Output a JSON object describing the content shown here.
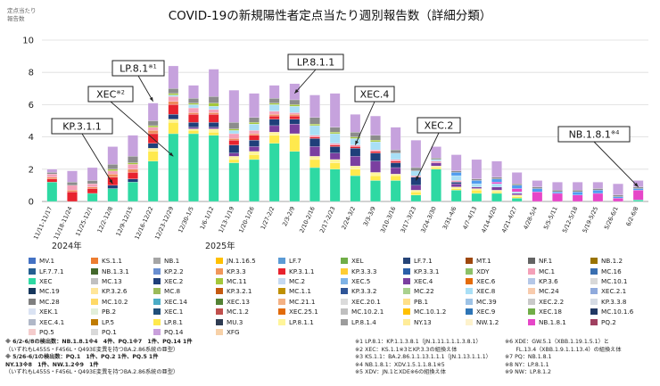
{
  "chart_data": {
    "type": "bar",
    "title": "COVID-19の新規陽性者定点当たり週別報告数（詳細分類）",
    "ylabel": "定点当たり\n報告数",
    "ylim": [
      0,
      10
    ],
    "yticks": [
      0,
      2,
      4,
      6,
      8,
      10
    ],
    "grid": true,
    "year_labels": [
      "2024年",
      "2025年"
    ],
    "categories": [
      "11/11-11/17",
      "11/18-11/24",
      "11/25-12/1",
      "12/2-12/8",
      "12/9-12/15",
      "12/16-12/22",
      "12/23-12/29",
      "12/30-1/5",
      "1/6-1/12",
      "1/13-1/19",
      "1/20-1/26",
      "1/27-2/2",
      "2/3-2/9",
      "2/10-2/16",
      "2/17-2/23",
      "2/24-3/2",
      "3/3-3/9",
      "3/10-3/16",
      "3/17-3/23",
      "3/24-3/30",
      "3/31-4/6",
      "4/7-4/13",
      "4/14-4/20",
      "4/21-4/27",
      "4/28-5/4",
      "5/5-5/11",
      "5/12-5/18",
      "5/19-5/25",
      "5/26-6/1",
      "6/2-6/8"
    ],
    "x_tick_labels": [
      "11/11-11/17",
      "11/18-11/24",
      "11/25-12/1",
      "12/2-12/8",
      "12/9-12/15",
      "12/16-12/22",
      "12/23-12/29",
      "12/30-1/5",
      "1/6-1/12",
      "1/13-1/19",
      "1/20-1/26",
      "1/27-2/2",
      "2/3-2/9",
      "2/10-2/16",
      "2/17-2/23",
      "2/24-3/2",
      "3/3-3/9",
      "3/10-3/16",
      "3/17-3/23",
      "3/24-3/30",
      "3/31-4/6",
      "4/7-4/13",
      "4/14-4/20",
      "4/21-4/27",
      "4/28-5/4",
      "5/5-5/11",
      "5/12-5/18",
      "5/19-5/25",
      "5/26-6/1",
      "6/2-6/8"
    ],
    "totals": [
      2.0,
      1.9,
      2.1,
      3.4,
      4.1,
      6.1,
      8.4,
      7.1,
      7.9,
      6.4,
      6.4,
      7.2,
      7.3,
      6.6,
      6.7,
      5.4,
      5.2,
      4.6,
      3.8,
      3.3,
      2.8,
      2.5,
      2.4,
      1.7,
      1.3,
      1.2,
      1.2,
      1.2,
      1.1,
      1.3
    ],
    "series": [
      {
        "name": "XEC",
        "color": "#2ed9a3",
        "values": [
          1.2,
          0,
          0.5,
          0.8,
          1.2,
          2.5,
          4.2,
          4.2,
          4.1,
          2.4,
          2.6,
          3.6,
          3.1,
          2.1,
          2.0,
          1.6,
          1.3,
          1.3,
          0.4,
          2.0,
          0.7,
          0.5,
          0.5,
          0.2,
          0,
          0,
          0,
          0,
          0,
          0.1
        ]
      },
      {
        "name": "LP.8.1",
        "color": "#ffe94d",
        "values": [
          0,
          0,
          0,
          0,
          0,
          0.6,
          0.7,
          0.2,
          0.2,
          0.2,
          0.3,
          0.5,
          1.0,
          0.5,
          0.4,
          0.4,
          0.3,
          0.3,
          0.2,
          0.1,
          0.1,
          0.2,
          0.1,
          0.1,
          0,
          0,
          0,
          0,
          0,
          0
        ]
      },
      {
        "name": "LP.8.1.1",
        "color": "#fff59a",
        "values": [
          0,
          0,
          0,
          0,
          0,
          0.2,
          0.2,
          0.1,
          0.2,
          0.2,
          0.2,
          0.2,
          0.1,
          0.2,
          0.2,
          0.2,
          0.2,
          0.1,
          0.1,
          0.1,
          0.1,
          0.1,
          0.1,
          0.1,
          0,
          0,
          0,
          0,
          0,
          0
        ]
      },
      {
        "name": "XEC.4",
        "color": "#7b3fa0",
        "values": [
          0,
          0,
          0,
          0,
          0,
          0,
          0,
          0.1,
          0.1,
          0.2,
          0.3,
          0.4,
          0.6,
          0.6,
          0.4,
          0.6,
          0.7,
          0.4,
          0.3,
          0.2,
          0.2,
          0.1,
          0.2,
          0.1,
          0,
          0,
          0,
          0,
          0,
          0
        ]
      },
      {
        "name": "XEC.2",
        "color": "#1f3f7a",
        "values": [
          0,
          0,
          0,
          0.2,
          0.2,
          0.3,
          0.3,
          0.3,
          0.3,
          0.5,
          0.4,
          0.4,
          0.3,
          0.5,
          0.4,
          0.5,
          0.5,
          0.3,
          0.5,
          0,
          0.1,
          0,
          0,
          0,
          0,
          0,
          0,
          0,
          0,
          0
        ]
      },
      {
        "name": "KP.3.1.1",
        "color": "#e8232e",
        "values": [
          0.2,
          0.6,
          0.3,
          0.5,
          0.4,
          0.6,
          0.6,
          0.5,
          0.5,
          0.3,
          0.3,
          0.2,
          0.2,
          0.1,
          0.1,
          0.1,
          0.1,
          0.1,
          0,
          0,
          0,
          0,
          0,
          0,
          0,
          0,
          0,
          0,
          0,
          0
        ]
      },
      {
        "name": "KP.3.3",
        "color": "#f08a5c",
        "values": [
          0.1,
          0.1,
          0.1,
          0.2,
          0.2,
          0.2,
          0.2,
          0.1,
          0.1,
          0.1,
          0.1,
          0.1,
          0.1,
          0,
          0,
          0,
          0,
          0,
          0,
          0,
          0,
          0,
          0,
          0,
          0,
          0,
          0,
          0,
          0,
          0
        ]
      },
      {
        "name": "MC.1",
        "color": "#f4a0b8",
        "values": [
          0.2,
          0.3,
          0.2,
          0.2,
          0.3,
          0.2,
          0.3,
          0.3,
          0.2,
          0.3,
          0.2,
          0.2,
          0.1,
          0.1,
          0.1,
          0.1,
          0.1,
          0.1,
          0.1,
          0.1,
          0.1,
          0,
          0,
          0,
          0,
          0,
          0,
          0,
          0,
          0
        ]
      },
      {
        "name": "XEC.8",
        "color": "#a9dff6",
        "values": [
          0,
          0,
          0,
          0,
          0,
          0,
          0.1,
          0.2,
          0.2,
          0.2,
          0.4,
          0.4,
          0.4,
          0.6,
          0.6,
          0.4,
          0.5,
          0.4,
          0.3,
          0.1,
          0.3,
          0.2,
          0.2,
          0.1,
          0,
          0,
          0,
          0,
          0,
          0
        ]
      },
      {
        "name": "MC.11",
        "color": "#a4c73a",
        "values": [
          0,
          0,
          0,
          0.1,
          0.1,
          0.1,
          0.1,
          0.1,
          0.2,
          0.1,
          0.1,
          0.1,
          0.1,
          0.1,
          0.1,
          0.1,
          0.1,
          0,
          0,
          0,
          0,
          0,
          0,
          0,
          0,
          0,
          0,
          0,
          0,
          0
        ]
      },
      {
        "name": "NB.1.8.1",
        "color": "#e646c8",
        "values": [
          0,
          0,
          0,
          0,
          0,
          0,
          0,
          0,
          0,
          0,
          0,
          0,
          0,
          0,
          0,
          0,
          0,
          0,
          0,
          0,
          0,
          0,
          0.1,
          0.2,
          0.6,
          0.5,
          0.4,
          0.5,
          0.2,
          0.6
        ]
      },
      {
        "name": "XEC.11",
        "color": "#4f9cf0",
        "values": [
          0,
          0,
          0,
          0,
          0,
          0,
          0,
          0,
          0,
          0,
          0,
          0,
          0,
          0,
          0,
          0,
          0,
          0,
          0,
          0,
          0.2,
          0.2,
          0.2,
          0.2,
          0.2,
          0.1,
          0.2,
          0.2,
          0.1,
          0.1
        ]
      },
      {
        "name": "LF.7",
        "color": "#8c8c8c",
        "values": [
          0.1,
          0.2,
          0.2,
          0.3,
          0.4,
          0.3,
          0.3,
          0.3,
          0.4,
          0.4,
          0.3,
          0.3,
          0.3,
          0.4,
          0.3,
          0.3,
          0.3,
          0.2,
          0.2,
          0.1,
          0.1,
          0.1,
          0.1,
          0.1,
          0.1,
          0.1,
          0.1,
          0.1,
          0.1,
          0.1
        ]
      },
      {
        "name": "その他",
        "color": "#c6a2dd",
        "values": [
          0.2,
          0.7,
          0.8,
          1.1,
          1.3,
          1.1,
          1.4,
          0.8,
          1.7,
          2.0,
          1.5,
          0.8,
          1.0,
          1.4,
          2.1,
          1.1,
          1.2,
          1.4,
          1.7,
          0.7,
          1.0,
          1.2,
          1.0,
          0.7,
          0.4,
          0.5,
          0.5,
          0.4,
          0.7,
          0.4
        ]
      }
    ],
    "annotations": [
      {
        "label": "KP.3.1.1"
      },
      {
        "label": "LP.8.1",
        "sup": "※1"
      },
      {
        "label": "XEC",
        "sup": "※2"
      },
      {
        "label": "LP.8.1.1"
      },
      {
        "label": "XEC.4"
      },
      {
        "label": "XEC.2"
      },
      {
        "label": "NB.1.8.1",
        "sup": "※4"
      }
    ]
  },
  "legend": [
    {
      "name": "MV.1",
      "color": "#4472c4"
    },
    {
      "name": "KS.1.1",
      "color": "#ed7d31"
    },
    {
      "name": "NB.1",
      "color": "#a5a5a5"
    },
    {
      "name": "JN.1.16.5",
      "color": "#ffc000"
    },
    {
      "name": "LF.7",
      "color": "#5b9bd5"
    },
    {
      "name": "XEL",
      "color": "#70ad47"
    },
    {
      "name": "LF.7.1",
      "color": "#264478"
    },
    {
      "name": "MT.1",
      "color": "#9e480e"
    },
    {
      "name": "NF.1",
      "color": "#636363"
    },
    {
      "name": "NB.1.2",
      "color": "#997300"
    },
    {
      "name": "LF.7.7.1",
      "color": "#255e91"
    },
    {
      "name": "NB.1.3.1",
      "color": "#43682b"
    },
    {
      "name": "KP.2.2",
      "color": "#698ed0"
    },
    {
      "name": "KP.3.3",
      "color": "#f1975a"
    },
    {
      "name": "KP.3.1.1",
      "color": "#e8232e"
    },
    {
      "name": "KP.3.3.3",
      "color": "#ffcd33"
    },
    {
      "name": "KP.3.3.1",
      "color": "#2b5fa8"
    },
    {
      "name": "XDY",
      "color": "#8cc168"
    },
    {
      "name": "MC.1",
      "color": "#f4a0b8"
    },
    {
      "name": "MC.16",
      "color": "#3a6fb0"
    },
    {
      "name": "XEC",
      "color": "#2ed9a3"
    },
    {
      "name": "MC.13",
      "color": "#c0c0c0"
    },
    {
      "name": "XEC.2",
      "color": "#1f3f7a"
    },
    {
      "name": "MC.11",
      "color": "#a4c73a"
    },
    {
      "name": "MC.2",
      "color": "#c5d9f1"
    },
    {
      "name": "XEC.5",
      "color": "#7fb3e6"
    },
    {
      "name": "XEC.4",
      "color": "#7b3fa0"
    },
    {
      "name": "XEC.6",
      "color": "#e46c0a"
    },
    {
      "name": "KP.3.6",
      "color": "#b4c7e7"
    },
    {
      "name": "MC.10.1",
      "color": "#d9d9d9"
    },
    {
      "name": "MC.19",
      "color": "#16365c"
    },
    {
      "name": "KP.3.2.6",
      "color": "#ffe699"
    },
    {
      "name": "MC.8",
      "color": "#9bbb59"
    },
    {
      "name": "KP.3.2.1",
      "color": "#c55a11"
    },
    {
      "name": "MC.1.1",
      "color": "#bf9000"
    },
    {
      "name": "KP.3.3.2",
      "color": "#2f5597"
    },
    {
      "name": "MC.22",
      "color": "#a9d18e"
    },
    {
      "name": "XEC.8",
      "color": "#a9dff6"
    },
    {
      "name": "MC.24",
      "color": "#f8cbad"
    },
    {
      "name": "XEC.2.1",
      "color": "#8faadc"
    },
    {
      "name": "MC.28",
      "color": "#7f7f7f"
    },
    {
      "name": "MC.10.2",
      "color": "#ffd966"
    },
    {
      "name": "XEC.14",
      "color": "#4bacc6"
    },
    {
      "name": "XEC.13",
      "color": "#548235"
    },
    {
      "name": "MC.21.1",
      "color": "#f4b183"
    },
    {
      "name": "XEC.20.1",
      "color": "#dbdbdb"
    },
    {
      "name": "PB.1",
      "color": "#ffe08a"
    },
    {
      "name": "MC.39",
      "color": "#9dc3e6"
    },
    {
      "name": "XEC.2.2",
      "color": "#c9c9c9"
    },
    {
      "name": "KP.3.3.8",
      "color": "#d6dce5"
    },
    {
      "name": "XEK.1",
      "color": "#dae3f3"
    },
    {
      "name": "PB.2",
      "color": "#e2efda"
    },
    {
      "name": "XEC.1",
      "color": "#1f4e79"
    },
    {
      "name": "MC.1.2",
      "color": "#c0504d"
    },
    {
      "name": "XEC.25.1",
      "color": "#e26b0a"
    },
    {
      "name": "MC.10.2.1",
      "color": "#bfbfbf"
    },
    {
      "name": "MC.10.1.2",
      "color": "#ffc000"
    },
    {
      "name": "XEC.9",
      "color": "#2e75b6"
    },
    {
      "name": "XEC.18",
      "color": "#70ad47"
    },
    {
      "name": "MC.10.1.6",
      "color": "#203864"
    },
    {
      "name": "XEC.4.1",
      "color": "#b0b8c8"
    },
    {
      "name": "LP.5",
      "color": "#bf7b00"
    },
    {
      "name": "LP.8.1",
      "color": "#ffe94d"
    },
    {
      "name": "MU.3",
      "color": "#2f3c52"
    },
    {
      "name": "LP.8.1.1",
      "color": "#fff59a"
    },
    {
      "name": "LP.8.1.4",
      "color": "#9c9c9c"
    },
    {
      "name": "NY.13",
      "color": "#ffec99"
    },
    {
      "name": "NW.1.2",
      "color": "#fdf2cc"
    },
    {
      "name": "NB.1.8.1",
      "color": "#e646c8"
    },
    {
      "name": "PQ.2",
      "color": "#a04060"
    },
    {
      "name": "PQ.5",
      "color": "#f4cccc"
    },
    {
      "name": "PQ.1",
      "color": "#d9d9d9"
    },
    {
      "name": "PQ.14",
      "color": "#c9a0dc"
    },
    {
      "name": "XFG",
      "color": "#f7d1a8"
    }
  ],
  "notes_left": [
    {
      "text": "※ 6/2-6/8の検出数：NB.1.8.1※4　4件、PQ.1※7　1件、PQ.14 1件",
      "bold": true
    },
    {
      "text": "（いずれもL455S・F456L・Q493E変異を持つBA.2.86系統の亜型）",
      "bold": false
    },
    {
      "text": "※ 5/26-6/1の検出数：PQ.1　1件、PQ.2 1件、PQ.5 1件",
      "bold": true
    },
    {
      "text": "NY.13※8　1件、NW.1.2※9　1件",
      "bold": true
    },
    {
      "text": "（いずれもL455S・F456L・Q493E変異を持つBA.2.86系統の亜型）",
      "bold": false
    }
  ],
  "notes_mid": [
    "※1 LP.8.1：KP.1.1.3.8.1（JN.1.11.1.1.1.3.8.1）",
    "※2 XEC：KS.1.1※3とKP.3.3の組換え体",
    "※3 KS.1.1：BA.2.86.1.1.13.1.1.1（JN.1.13.1.1.1）",
    "※4 NB.1.8.1：XDV.1.5.1.1.8.1※5",
    "※5 XDV：JN.1とXDE※6の組換え体"
  ],
  "notes_right": [
    "※6 XDE：GW.5.1（XBB.1.19.1.5.1）と",
    "　　FL.13.4（XBB.1.9.1.1.13.4）の組換え体",
    "※7 PQ：NB.1.8.1",
    "※8 NY：LP.8.1.1",
    "※9 NW：LP.8.1.2"
  ]
}
